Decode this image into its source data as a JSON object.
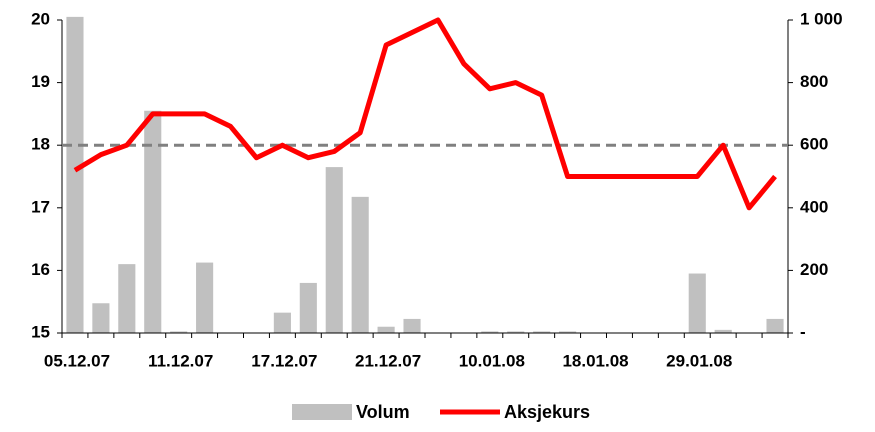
{
  "chart_data": {
    "type": "bar-line",
    "categories": [
      "05.12.07",
      null,
      null,
      null,
      "11.12.07",
      null,
      null,
      null,
      "17.12.07",
      null,
      null,
      null,
      "21.12.07",
      null,
      null,
      null,
      "10.01.08",
      null,
      null,
      null,
      "18.01.08",
      null,
      null,
      null,
      "29.01.08",
      null,
      null,
      null
    ],
    "series": [
      {
        "name": "Volum",
        "type": "bar",
        "axis": "y2",
        "color": "#c0c0c0",
        "values": [
          1010,
          95,
          220,
          710,
          5,
          225,
          0,
          0,
          65,
          160,
          530,
          435,
          20,
          45,
          0,
          0,
          5,
          5,
          5,
          5,
          0,
          0,
          0,
          0,
          190,
          10,
          0,
          45
        ]
      },
      {
        "name": "Aksjekurs",
        "type": "line",
        "axis": "y",
        "color": "#ff0000",
        "values": [
          17.6,
          17.85,
          18.0,
          18.5,
          18.5,
          18.5,
          18.3,
          17.8,
          18.0,
          17.8,
          17.9,
          18.2,
          19.6,
          19.8,
          20,
          19.3,
          18.9,
          19.0,
          18.8,
          17.5,
          17.5,
          17.5,
          17.5,
          17.5,
          17.5,
          18.0,
          17.0,
          17.5
        ]
      }
    ],
    "ylim": [
      15,
      20
    ],
    "yticks": [
      15,
      16,
      17,
      18,
      19,
      20
    ],
    "y2lim": [
      0,
      1000
    ],
    "y2ticks": [
      {
        "value": 0,
        "label": "-"
      },
      200,
      400,
      600,
      800,
      {
        "value": 1000,
        "label": "1 000"
      }
    ],
    "reference_line": 18,
    "legend": "bottom"
  }
}
